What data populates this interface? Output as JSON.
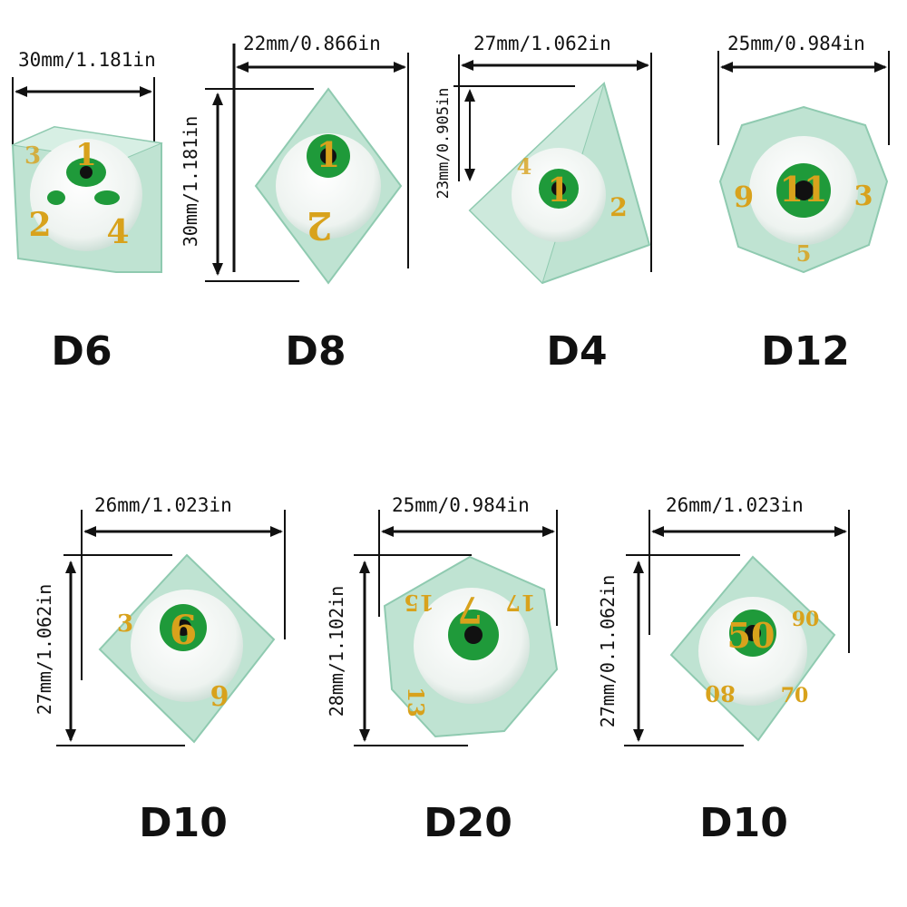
{
  "dice": [
    {
      "label": "D6",
      "width": "30mm/1.181in"
    },
    {
      "label": "D8",
      "width": "22mm/0.866in",
      "height": "30mm/1.181in"
    },
    {
      "label": "D4",
      "width": "27mm/1.062in",
      "height": "23mm/0.905in"
    },
    {
      "label": "D12",
      "width": "25mm/0.984in"
    },
    {
      "label": "D10",
      "width": "26mm/1.023in",
      "height": "27mm/1.062in"
    },
    {
      "label": "D20",
      "width": "25mm/0.984in",
      "height": "28mm/1.102in"
    },
    {
      "label": "D10",
      "width": "26mm/1.023in",
      "height": "27mm/0.1.062in"
    }
  ],
  "colors": {
    "resin": "#bfe3d2",
    "resin_edge": "#8fcab0",
    "eye_iris": "#1f9a3a",
    "pupil": "#111111",
    "numbers": "#d8a21c",
    "veins": "#b02a2a"
  },
  "face_numbers": {
    "d6": [
      "1",
      "2",
      "4",
      "3"
    ],
    "d8": [
      "1",
      "2"
    ],
    "d4": [
      "1",
      "2",
      "4"
    ],
    "d12": [
      "11",
      "9",
      "3",
      "5"
    ],
    "d10a": [
      "6",
      "3",
      "9"
    ],
    "d20": [
      "7",
      "15",
      "17",
      "13"
    ],
    "d10b": [
      "50",
      "80",
      "90",
      "70"
    ]
  }
}
